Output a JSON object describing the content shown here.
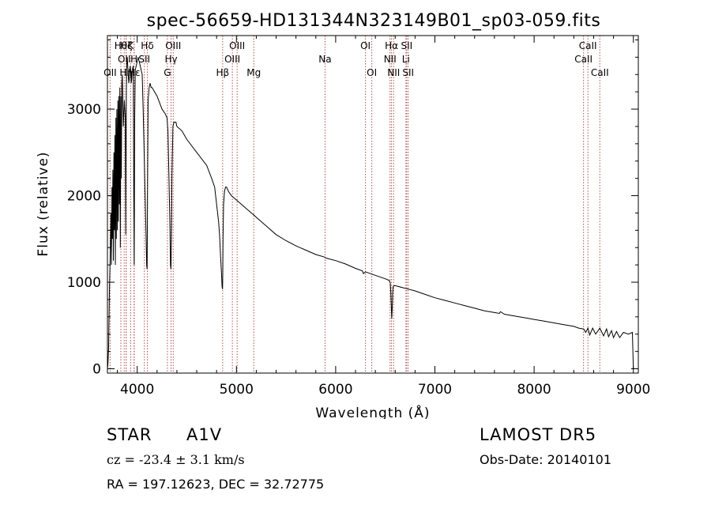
{
  "chart_data": {
    "type": "line",
    "title": "spec-56659-HD131344N323149B01_sp03-059.fits",
    "xlabel": "Wavelength (Å)",
    "ylabel": "Flux (relative)",
    "xlim": [
      3700,
      9050
    ],
    "ylim": [
      -50,
      3850
    ],
    "x_ticks": [
      4000,
      5000,
      6000,
      7000,
      8000,
      9000
    ],
    "y_ticks": [
      0,
      1000,
      2000,
      3000
    ],
    "grid": false,
    "series": [
      {
        "color": "#000000",
        "x": [
          3700,
          3705,
          3712,
          3720,
          3728,
          3735,
          3740,
          3745,
          3750,
          3755,
          3760,
          3765,
          3770,
          3775,
          3780,
          3785,
          3790,
          3795,
          3800,
          3805,
          3810,
          3815,
          3820,
          3825,
          3830,
          3835,
          3840,
          3845,
          3850,
          3860,
          3870,
          3880,
          3885,
          3890,
          3895,
          3900,
          3905,
          3910,
          3915,
          3920,
          3925,
          3930,
          3935,
          3940,
          3945,
          3950,
          3960,
          3965,
          3970,
          3975,
          3980,
          3990,
          4000,
          4010,
          4020,
          4030,
          4040,
          4050,
          4060,
          4070,
          4080,
          4090,
          4095,
          4100,
          4102,
          4105,
          4110,
          4120,
          4130,
          4140,
          4150,
          4200,
          4250,
          4280,
          4300,
          4310,
          4320,
          4330,
          4335,
          4340,
          4345,
          4350,
          4360,
          4370,
          4380,
          4390,
          4400,
          4450,
          4500,
          4600,
          4700,
          4750,
          4780,
          4800,
          4820,
          4830,
          4840,
          4850,
          4855,
          4860,
          4862,
          4865,
          4870,
          4880,
          4890,
          4900,
          4920,
          4950,
          5000,
          5100,
          5150,
          5172,
          5200,
          5300,
          5400,
          5500,
          5600,
          5700,
          5800,
          5890,
          5900,
          6000,
          6100,
          6200,
          6270,
          6280,
          6300,
          6400,
          6500,
          6540,
          6550,
          6555,
          6560,
          6565,
          6570,
          6575,
          6580,
          6590,
          6600,
          6700,
          6800,
          6900,
          7000,
          7100,
          7200,
          7300,
          7400,
          7500,
          7600,
          7650,
          7660,
          7700,
          7800,
          7900,
          8000,
          8100,
          8200,
          8300,
          8400,
          8450,
          8500,
          8520,
          8542,
          8560,
          8590,
          8620,
          8662,
          8700,
          8730,
          8750,
          8780,
          8800,
          8830,
          8862,
          8900,
          8950,
          8990,
          9000
        ],
        "y": [
          0,
          50,
          250,
          900,
          1300,
          1800,
          1200,
          2100,
          1500,
          2300,
          1250,
          2500,
          1600,
          2700,
          1200,
          2900,
          1500,
          3000,
          1600,
          3100,
          1700,
          3150,
          1900,
          3250,
          1400,
          3150,
          2200,
          3300,
          3400,
          2800,
          3100,
          2900,
          1550,
          3200,
          3550,
          3600,
          3500,
          3400,
          3300,
          3350,
          3450,
          3500,
          3400,
          3300,
          3350,
          3450,
          3500,
          2100,
          1200,
          2900,
          3450,
          3500,
          3550,
          3600,
          3550,
          3500,
          3450,
          3400,
          3000,
          2500,
          2000,
          1500,
          1200,
          1150,
          1600,
          2300,
          3100,
          3250,
          3300,
          3250,
          3250,
          3150,
          3000,
          2950,
          2900,
          2750,
          2200,
          1650,
          1200,
          1150,
          1500,
          2200,
          2800,
          2850,
          2850,
          2850,
          2800,
          2750,
          2650,
          2500,
          2350,
          2200,
          2100,
          1900,
          1700,
          1550,
          1300,
          1100,
          950,
          920,
          1100,
          1500,
          1900,
          2050,
          2100,
          2100,
          2050,
          2000,
          1950,
          1850,
          1800,
          1780,
          1750,
          1650,
          1550,
          1480,
          1420,
          1370,
          1320,
          1290,
          1280,
          1250,
          1210,
          1160,
          1130,
          1100,
          1120,
          1080,
          1040,
          1020,
          990,
          900,
          750,
          580,
          700,
          880,
          950,
          960,
          960,
          930,
          900,
          860,
          820,
          790,
          760,
          730,
          700,
          670,
          650,
          640,
          660,
          630,
          610,
          590,
          570,
          550,
          530,
          510,
          490,
          470,
          460,
          420,
          470,
          390,
          470,
          400,
          470,
          380,
          460,
          370,
          440,
          360,
          430,
          360,
          420,
          400,
          420,
          0
        ]
      }
    ],
    "line_marks": [
      {
        "x": 3835,
        "label": "Hθ",
        "row": 0
      },
      {
        "x": 3869,
        "label": "OII",
        "row": 1
      },
      {
        "x": 3727,
        "label": "OII",
        "row": 2
      },
      {
        "x": 3889,
        "label": "Hη",
        "row": 2
      },
      {
        "x": 3889,
        "label": "Hζ",
        "row": 0
      },
      {
        "x": 3934,
        "label": "K",
        "row": 0
      },
      {
        "x": 3968,
        "label": "H",
        "row": 1
      },
      {
        "x": 3970,
        "label": "Hε",
        "row": 2
      },
      {
        "x": 4102,
        "label": "Hδ",
        "row": 0
      },
      {
        "x": 4072,
        "label": "SII",
        "row": 1
      },
      {
        "x": 4304,
        "label": "G",
        "row": 2
      },
      {
        "x": 4341,
        "label": "Hγ",
        "row": 1
      },
      {
        "x": 4363,
        "label": "OIII",
        "row": 0
      },
      {
        "x": 4861,
        "label": "Hβ",
        "row": 2
      },
      {
        "x": 4959,
        "label": "OIII",
        "row": 1
      },
      {
        "x": 5007,
        "label": "OIII",
        "row": 0
      },
      {
        "x": 5175,
        "label": "Mg",
        "row": 2
      },
      {
        "x": 5893,
        "label": "Na",
        "row": 1
      },
      {
        "x": 6300,
        "label": "OI",
        "row": 0
      },
      {
        "x": 6364,
        "label": "OI",
        "row": 2
      },
      {
        "x": 6548,
        "label": "NII",
        "row": 1
      },
      {
        "x": 6563,
        "label": "Hα",
        "row": 0
      },
      {
        "x": 6584,
        "label": "NII",
        "row": 2
      },
      {
        "x": 6708,
        "label": "Li",
        "row": 1
      },
      {
        "x": 6716,
        "label": "SII",
        "row": 0
      },
      {
        "x": 6731,
        "label": "SII",
        "row": 2
      },
      {
        "x": 8498,
        "label": "CaII",
        "row": 1
      },
      {
        "x": 8542,
        "label": "CaII",
        "row": 0
      },
      {
        "x": 8662,
        "label": "CaII",
        "row": 2
      }
    ],
    "line_mark_color": "#b05050"
  },
  "info": {
    "object_class": "STAR",
    "subclass": "A1V",
    "survey": "LAMOST  DR5",
    "cz": "cz = -23.4 ± 3.1 km/s",
    "obs_date": "Obs-Date: 20140101",
    "coords": "RA = 197.12623, DEC =  32.72775"
  }
}
